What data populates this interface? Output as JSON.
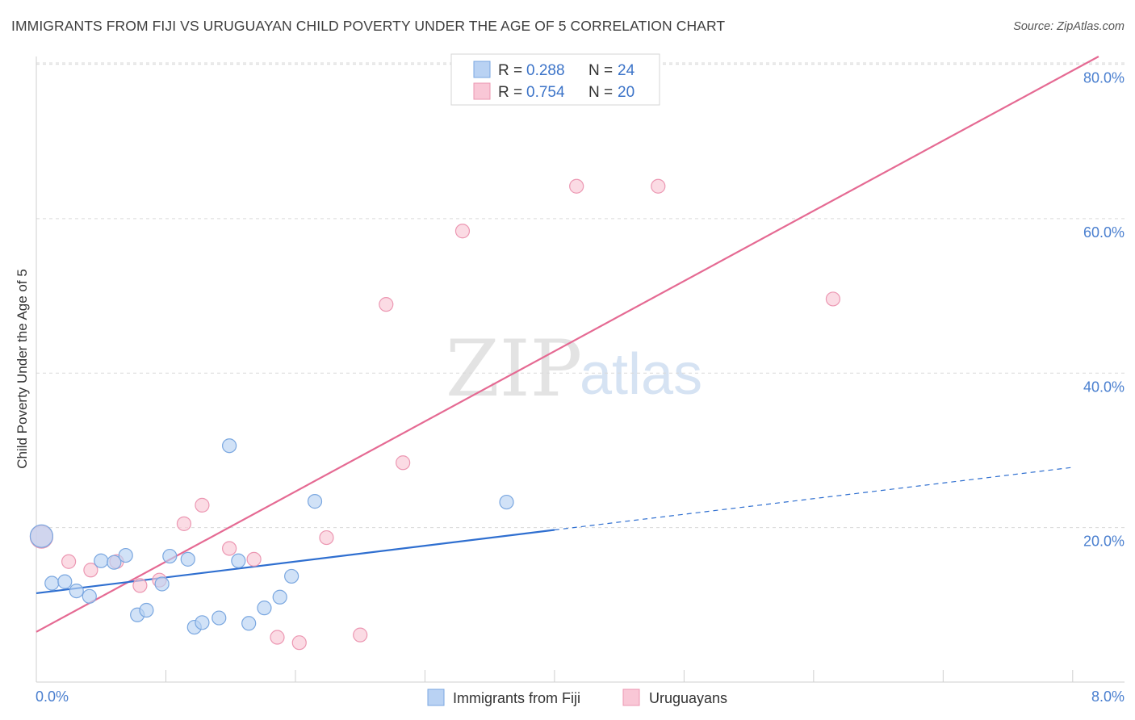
{
  "title": "IMMIGRANTS FROM FIJI VS URUGUAYAN CHILD POVERTY UNDER THE AGE OF 5 CORRELATION CHART",
  "source": "Source: ZipAtlas.com",
  "watermark": {
    "zip": "ZIP",
    "atlas": "atlas"
  },
  "colors": {
    "fiji_fill": "#b9d2f3",
    "fiji_stroke": "#7aa7e0",
    "fiji_line": "#2f6fd0",
    "uru_fill": "#f9c7d6",
    "uru_stroke": "#ec97b2",
    "uru_line": "#e56a93",
    "tick_text": "#4a7fcf",
    "grid": "#d9d9d9"
  },
  "legend": {
    "rows": [
      {
        "r_label": "R = ",
        "r_value": "0.288",
        "n_label": "N = ",
        "n_value": "24"
      },
      {
        "r_label": "R = ",
        "r_value": "0.754",
        "n_label": "N = ",
        "n_value": "20"
      }
    ]
  },
  "chart_data": {
    "type": "scatter",
    "title": "IMMIGRANTS FROM FIJI VS URUGUAYAN CHILD POVERTY UNDER THE AGE OF 5 CORRELATION CHART",
    "xlabel": "",
    "ylabel": "Child Poverty Under the Age of 5",
    "xlim": [
      0,
      8.4
    ],
    "ylim": [
      0,
      81
    ],
    "x_tick_labels": [
      "0.0%",
      "8.0%"
    ],
    "y_ticks": [
      20,
      40,
      60,
      80
    ],
    "y_tick_labels": [
      "20.0%",
      "40.0%",
      "60.0%",
      "80.0%"
    ],
    "grid": true,
    "series": [
      {
        "name": "Immigrants from Fiji",
        "r": 0.288,
        "n": 24,
        "points": [
          {
            "x": 0.04,
            "y": 18.9,
            "big": true
          },
          {
            "x": 0.12,
            "y": 12.8
          },
          {
            "x": 0.22,
            "y": 13.0
          },
          {
            "x": 0.31,
            "y": 11.8
          },
          {
            "x": 0.41,
            "y": 11.1
          },
          {
            "x": 0.5,
            "y": 15.7
          },
          {
            "x": 0.6,
            "y": 15.5
          },
          {
            "x": 0.69,
            "y": 16.4
          },
          {
            "x": 0.78,
            "y": 8.7
          },
          {
            "x": 0.85,
            "y": 9.3
          },
          {
            "x": 0.97,
            "y": 12.7
          },
          {
            "x": 1.03,
            "y": 16.3
          },
          {
            "x": 1.17,
            "y": 15.9
          },
          {
            "x": 1.22,
            "y": 7.1
          },
          {
            "x": 1.28,
            "y": 7.7
          },
          {
            "x": 1.41,
            "y": 8.3
          },
          {
            "x": 1.49,
            "y": 30.6
          },
          {
            "x": 1.56,
            "y": 15.7
          },
          {
            "x": 1.64,
            "y": 7.6
          },
          {
            "x": 1.76,
            "y": 9.6
          },
          {
            "x": 1.88,
            "y": 11.0
          },
          {
            "x": 1.97,
            "y": 13.7
          },
          {
            "x": 2.15,
            "y": 23.4
          },
          {
            "x": 3.63,
            "y": 23.3
          }
        ],
        "trend": {
          "x0": 0.0,
          "y0": 11.5,
          "x1": 4.0,
          "y1": 19.7,
          "dash_x1": 8.0,
          "dash_y1": 27.8
        }
      },
      {
        "name": "Uruguayans",
        "r": 0.754,
        "n": 20,
        "points": [
          {
            "x": 0.04,
            "y": 18.8,
            "big": true
          },
          {
            "x": 0.25,
            "y": 15.6
          },
          {
            "x": 0.42,
            "y": 14.5
          },
          {
            "x": 0.62,
            "y": 15.6
          },
          {
            "x": 0.8,
            "y": 12.5
          },
          {
            "x": 0.95,
            "y": 13.2
          },
          {
            "x": 1.14,
            "y": 20.5
          },
          {
            "x": 1.28,
            "y": 22.9
          },
          {
            "x": 1.49,
            "y": 17.3
          },
          {
            "x": 1.68,
            "y": 15.9
          },
          {
            "x": 1.86,
            "y": 5.8
          },
          {
            "x": 2.03,
            "y": 5.1
          },
          {
            "x": 2.24,
            "y": 18.7
          },
          {
            "x": 2.5,
            "y": 6.1
          },
          {
            "x": 2.7,
            "y": 48.9
          },
          {
            "x": 2.83,
            "y": 28.4
          },
          {
            "x": 3.29,
            "y": 58.4
          },
          {
            "x": 4.17,
            "y": 64.2
          },
          {
            "x": 4.8,
            "y": 64.2
          },
          {
            "x": 6.15,
            "y": 49.6
          }
        ],
        "trend": {
          "x0": 0.0,
          "y0": 6.5,
          "x1": 8.2,
          "y1": 81.0
        }
      }
    ]
  }
}
